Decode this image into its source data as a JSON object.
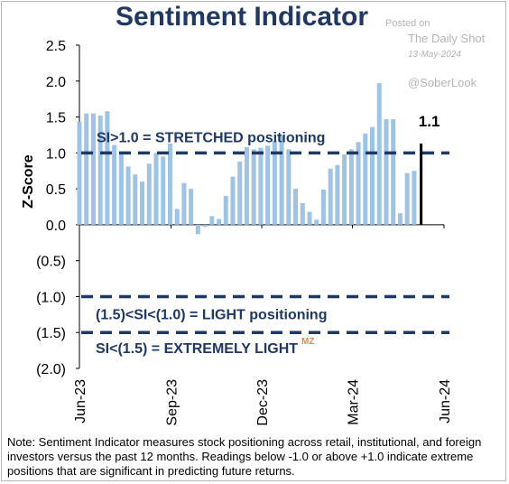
{
  "header": {
    "title": "Sentiment Indicator"
  },
  "watermark": {
    "posted_on": "Posted on",
    "source": "The Daily Shot",
    "date": "13-May-2024",
    "handle": "@SoberLook",
    "mz": "MZ"
  },
  "footer": {
    "note": "Note: Sentiment Indicator measures stock positioning across retail, institutional, and foreign investors versus the past 12 months. Readings below -1.0 or above +1.0 indicate extreme positions that are significant in predicting future returns."
  },
  "chart_data": {
    "type": "bar",
    "title": "Sentiment Indicator",
    "ylabel": "Z-Score",
    "xlabel": "",
    "ylim": [
      -2.0,
      2.5
    ],
    "yticks": [
      2.5,
      2.0,
      1.5,
      1.0,
      0.5,
      0.0,
      -0.5,
      -1.0,
      -1.5,
      -2.0
    ],
    "ytick_labels": [
      "2.5",
      "2.0",
      "1.5",
      "1.0",
      "0.5",
      "0.0",
      "(0.5)",
      "(1.0)",
      "(1.5)",
      "(2.0)"
    ],
    "xtick_labels": [
      "Jun-23",
      "Sep-23",
      "Dec-23",
      "Mar-24",
      "Jun-24"
    ],
    "x_start": "2023-06-01",
    "x_end": "2024-06-01",
    "x_ticks": [
      "2023-06-01",
      "2023-09-01",
      "2023-12-01",
      "2024-03-01",
      "2024-06-01"
    ],
    "bar_color": "#9dc3e6",
    "last_bar_color": "#000000",
    "series": [
      {
        "x": [
          "2023-06-01",
          "2023-06-08",
          "2023-06-15",
          "2023-06-22",
          "2023-06-29",
          "2023-07-06",
          "2023-07-13",
          "2023-07-20",
          "2023-07-27",
          "2023-08-03",
          "2023-08-10",
          "2023-08-17",
          "2023-08-24",
          "2023-08-31",
          "2023-09-07",
          "2023-09-14",
          "2023-09-21",
          "2023-09-28",
          "2023-10-05",
          "2023-10-12",
          "2023-10-19",
          "2023-10-26",
          "2023-11-02",
          "2023-11-09",
          "2023-11-16",
          "2023-11-23",
          "2023-11-30",
          "2023-12-07",
          "2023-12-14",
          "2023-12-21",
          "2023-12-28",
          "2024-01-04",
          "2024-01-11",
          "2024-01-18",
          "2024-01-25",
          "2024-02-01",
          "2024-02-08",
          "2024-02-15",
          "2024-02-22",
          "2024-02-29",
          "2024-03-07",
          "2024-03-14",
          "2024-03-21",
          "2024-03-28",
          "2024-04-04",
          "2024-04-11",
          "2024-04-18",
          "2024-04-25",
          "2024-05-02",
          "2024-05-09"
        ],
        "values": [
          1.43,
          1.55,
          1.55,
          1.52,
          1.58,
          1.11,
          1.0,
          0.81,
          0.7,
          0.6,
          0.85,
          1.0,
          0.95,
          1.13,
          0.22,
          0.58,
          0.5,
          -0.13,
          -0.03,
          0.12,
          0.08,
          0.4,
          0.67,
          0.88,
          1.08,
          1.05,
          1.07,
          1.1,
          1.17,
          1.24,
          1.05,
          0.5,
          0.3,
          0.18,
          0.07,
          0.49,
          0.78,
          0.83,
          0.98,
          1.05,
          1.15,
          1.27,
          1.36,
          1.97,
          1.47,
          1.47,
          0.16,
          0.72,
          0.75,
          1.13
        ],
        "last_value_label": "1.1"
      }
    ],
    "reference_lines": [
      {
        "value": 1.0,
        "style": "dashed",
        "color": "#1f3864",
        "label": "SI>1.0 = STRETCHED positioning"
      },
      {
        "value": -1.0,
        "style": "dashed",
        "color": "#1f3864",
        "label": "(1.5)<SI<(1.0) = LIGHT positioning"
      },
      {
        "value": -1.5,
        "style": "dashed",
        "color": "#1f3864",
        "label": "SI<(1.5) = EXTREMELY LIGHT"
      }
    ],
    "grid": false,
    "legend": "none"
  }
}
